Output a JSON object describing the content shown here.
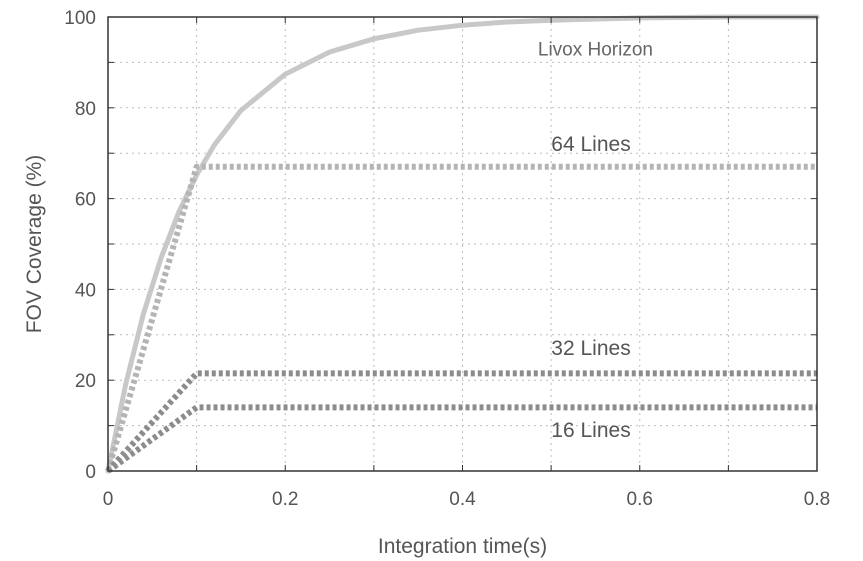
{
  "chart_data": {
    "type": "line",
    "xlabel": "Integration time(s)",
    "ylabel": "FOV Coverage (%)",
    "xlim": [
      0,
      0.8
    ],
    "ylim": [
      0,
      100
    ],
    "xticks": [
      0,
      0.2,
      0.4,
      0.6,
      0.8
    ],
    "xtick_labels": [
      "0",
      "0.2",
      "0.4",
      "0.6",
      "0.8"
    ],
    "yticks": [
      0,
      20,
      40,
      60,
      80,
      100
    ],
    "ytick_labels": [
      "0",
      "20",
      "40",
      "60",
      "80",
      "100"
    ],
    "grid": true,
    "series": [
      {
        "name": "Livox Horizon",
        "style": "solid",
        "color": "#c8c8c8",
        "x": [
          0,
          0.02,
          0.04,
          0.06,
          0.08,
          0.1,
          0.12,
          0.15,
          0.2,
          0.25,
          0.3,
          0.35,
          0.4,
          0.45,
          0.5,
          0.6,
          0.7,
          0.8
        ],
        "y": [
          0,
          19.1,
          34.6,
          47.0,
          57.1,
          65.2,
          71.8,
          79.4,
          87.4,
          92.3,
          95.2,
          97.1,
          98.2,
          98.9,
          99.3,
          99.8,
          100,
          100
        ]
      },
      {
        "name": "64 Lines",
        "style": "dotted",
        "color": "#b4b4b4",
        "x": [
          0,
          0.1,
          0.8
        ],
        "y": [
          0,
          67,
          67
        ]
      },
      {
        "name": "32 Lines",
        "style": "dotted",
        "color": "#8c8c8c",
        "x": [
          0,
          0.1,
          0.8
        ],
        "y": [
          0,
          21.5,
          21.5
        ]
      },
      {
        "name": "16 Lines",
        "style": "dotted",
        "color": "#8c8c8c",
        "x": [
          0,
          0.1,
          0.8
        ],
        "y": [
          0,
          14,
          14
        ]
      }
    ],
    "annotations": [
      {
        "text": "Livox Horizon",
        "x": 0.55,
        "y": 91.5
      },
      {
        "text": "64 Lines",
        "x": 0.545,
        "y": 70.5
      },
      {
        "text": "32 Lines",
        "x": 0.545,
        "y": 25.5
      },
      {
        "text": "16 Lines",
        "x": 0.545,
        "y": 7.5
      }
    ]
  }
}
